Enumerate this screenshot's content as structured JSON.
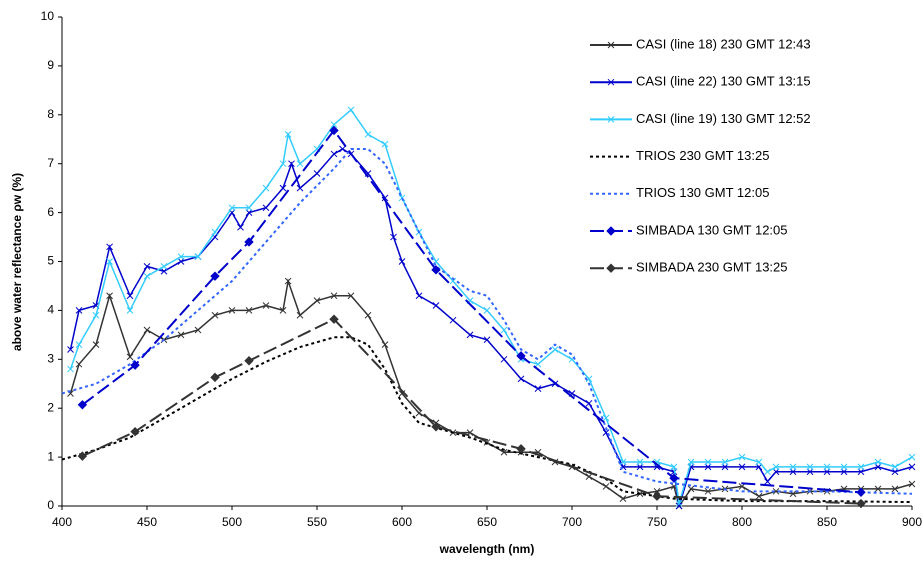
{
  "chart_data": {
    "type": "line",
    "xlabel": "wavelength (nm)",
    "ylabel": "above water reflectance ρw (%)",
    "xlim": [
      400,
      900
    ],
    "xticks": [
      400,
      450,
      500,
      550,
      600,
      650,
      700,
      750,
      800,
      850,
      900
    ],
    "ylim": [
      0,
      10
    ],
    "yticks": [
      0,
      1,
      2,
      3,
      4,
      5,
      6,
      7,
      8,
      9,
      10
    ],
    "grid": false,
    "legend": "right",
    "series": [
      {
        "name": "CASI (line 18) 230 GMT 12:43",
        "color": "#333333",
        "dash": "solid",
        "marker": "x",
        "x": [
          405,
          410,
          420,
          428,
          440,
          450,
          460,
          470,
          480,
          490,
          500,
          510,
          520,
          530,
          533,
          540,
          550,
          560,
          570,
          580,
          590,
          600,
          610,
          620,
          630,
          640,
          650,
          660,
          670,
          680,
          690,
          700,
          710,
          720,
          730,
          740,
          750,
          760,
          763,
          770,
          780,
          790,
          800,
          810,
          820,
          830,
          840,
          850,
          860,
          870,
          880,
          890,
          900
        ],
        "values": [
          2.3,
          2.9,
          3.3,
          4.3,
          3.05,
          3.6,
          3.4,
          3.5,
          3.6,
          3.9,
          4.0,
          4.0,
          4.1,
          4.0,
          4.6,
          3.9,
          4.2,
          4.3,
          4.3,
          3.9,
          3.3,
          2.3,
          1.9,
          1.7,
          1.5,
          1.5,
          1.3,
          1.1,
          1.1,
          1.1,
          0.9,
          0.8,
          0.6,
          0.4,
          0.15,
          0.25,
          0.3,
          0.4,
          0.0,
          0.35,
          0.3,
          0.35,
          0.4,
          0.2,
          0.3,
          0.25,
          0.3,
          0.3,
          0.35,
          0.35,
          0.35,
          0.35,
          0.45
        ]
      },
      {
        "name": "CASI (line 22) 130  GMT 13:15",
        "color": "#0000cc",
        "dash": "solid",
        "marker": "x",
        "x": [
          405,
          410,
          420,
          428,
          440,
          450,
          460,
          470,
          480,
          490,
          500,
          505,
          510,
          520,
          530,
          535,
          540,
          550,
          560,
          565,
          570,
          580,
          590,
          595,
          600,
          610,
          620,
          630,
          640,
          650,
          660,
          670,
          680,
          690,
          700,
          710,
          720,
          730,
          740,
          750,
          760,
          763,
          770,
          780,
          790,
          800,
          810,
          815,
          820,
          830,
          840,
          850,
          860,
          870,
          880,
          890,
          900
        ],
        "values": [
          3.2,
          4.0,
          4.1,
          5.3,
          4.3,
          4.9,
          4.8,
          5.0,
          5.1,
          5.5,
          6.0,
          5.7,
          6.0,
          6.1,
          6.5,
          7.0,
          6.5,
          6.8,
          7.2,
          7.3,
          7.2,
          6.8,
          6.3,
          5.5,
          5.0,
          4.3,
          4.1,
          3.8,
          3.5,
          3.4,
          3.0,
          2.6,
          2.4,
          2.5,
          2.3,
          2.1,
          1.5,
          0.8,
          0.8,
          0.8,
          0.7,
          0.0,
          0.8,
          0.8,
          0.8,
          0.8,
          0.8,
          0.5,
          0.7,
          0.7,
          0.7,
          0.7,
          0.7,
          0.7,
          0.8,
          0.7,
          0.8
        ]
      },
      {
        "name": "CASI (line 19) 130 GMT 12:52",
        "color": "#33ccff",
        "dash": "solid",
        "marker": "x",
        "x": [
          405,
          410,
          420,
          428,
          440,
          450,
          460,
          470,
          480,
          490,
          500,
          510,
          520,
          530,
          533,
          540,
          550,
          560,
          570,
          580,
          590,
          600,
          610,
          620,
          630,
          640,
          650,
          660,
          670,
          680,
          690,
          700,
          710,
          720,
          730,
          740,
          750,
          760,
          763,
          770,
          780,
          790,
          800,
          810,
          815,
          820,
          830,
          840,
          850,
          860,
          870,
          880,
          890,
          900
        ],
        "values": [
          2.8,
          3.3,
          3.9,
          5.0,
          4.0,
          4.7,
          4.9,
          5.1,
          5.1,
          5.6,
          6.1,
          6.1,
          6.5,
          7.0,
          7.6,
          7.0,
          7.3,
          7.8,
          8.1,
          7.6,
          7.4,
          6.3,
          5.6,
          5.0,
          4.6,
          4.2,
          4.0,
          3.6,
          3.0,
          2.9,
          3.2,
          3.0,
          2.6,
          1.8,
          0.9,
          0.9,
          0.9,
          0.8,
          0.05,
          0.9,
          0.9,
          0.9,
          1.0,
          0.9,
          0.7,
          0.8,
          0.8,
          0.8,
          0.8,
          0.8,
          0.8,
          0.9,
          0.8,
          1.0
        ]
      },
      {
        "name": "TRIOS 230 GMT 13:25",
        "color": "#000000",
        "dash": "dot",
        "marker": "none",
        "x": [
          400,
          420,
          440,
          460,
          480,
          500,
          520,
          540,
          560,
          570,
          580,
          590,
          600,
          610,
          620,
          640,
          660,
          680,
          700,
          720,
          730,
          750,
          760,
          800,
          850,
          900
        ],
        "values": [
          0.95,
          1.15,
          1.4,
          1.8,
          2.2,
          2.6,
          2.95,
          3.25,
          3.45,
          3.45,
          3.3,
          2.8,
          2.1,
          1.7,
          1.6,
          1.4,
          1.15,
          1.0,
          0.85,
          0.55,
          0.3,
          0.2,
          0.15,
          0.1,
          0.1,
          0.08
        ]
      },
      {
        "name": "TRIOS 130 GMT 12:05",
        "color": "#3366ff",
        "dash": "dot",
        "marker": "none",
        "x": [
          400,
          420,
          440,
          460,
          480,
          500,
          520,
          540,
          560,
          570,
          580,
          590,
          600,
          620,
          640,
          650,
          660,
          670,
          680,
          690,
          700,
          710,
          720,
          730,
          750,
          800,
          850,
          900
        ],
        "values": [
          2.3,
          2.5,
          2.9,
          3.4,
          4.0,
          4.6,
          5.4,
          6.2,
          6.9,
          7.3,
          7.3,
          7.0,
          6.3,
          4.9,
          4.4,
          4.3,
          3.8,
          3.2,
          3.0,
          3.3,
          3.1,
          2.5,
          1.6,
          0.7,
          0.5,
          0.3,
          0.3,
          0.25
        ]
      },
      {
        "name": "SIMBADA 130 GMT 12:05",
        "color": "#0000cc",
        "dash": "dash",
        "marker": "diamond",
        "x": [
          412,
          443,
          490,
          510,
          560,
          620,
          670,
          760,
          870
        ],
        "values": [
          2.07,
          2.88,
          4.7,
          5.4,
          7.68,
          4.83,
          3.07,
          0.57,
          0.28
        ]
      },
      {
        "name": "SIMBADA 230 GMT 13:25",
        "color": "#333333",
        "dash": "dash",
        "marker": "diamond",
        "x": [
          412,
          443,
          490,
          510,
          560,
          620,
          670,
          750,
          870
        ],
        "values": [
          1.02,
          1.52,
          2.63,
          2.97,
          3.82,
          1.62,
          1.17,
          0.2,
          0.05
        ]
      }
    ]
  }
}
